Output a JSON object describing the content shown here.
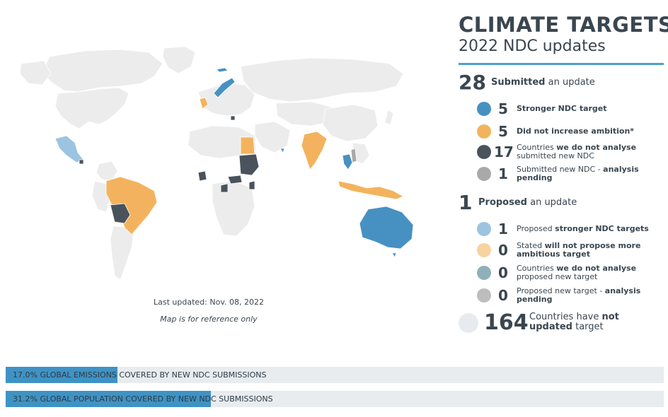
{
  "header": {
    "title": "CLIMATE TARGETS",
    "subtitle": "2022 NDC updates"
  },
  "submitted": {
    "count": "28",
    "label_bold": "Submitted",
    "label_rest": " an update",
    "items": [
      {
        "count": "5",
        "color": "#4791c2",
        "bold_pre": "Stronger NDC target",
        "text": "",
        "bold_post": ""
      },
      {
        "count": "5",
        "color": "#f3b35e",
        "bold_pre": "Did not increase ambition*",
        "text": "",
        "bold_post": ""
      },
      {
        "count": "17",
        "color": "#4a535c",
        "bold_pre": "",
        "text_pre": "Countries ",
        "bold_mid": "we do not analyse",
        "text_post": " submitted new NDC"
      },
      {
        "count": "1",
        "color": "#a9a9a9",
        "bold_pre": "",
        "text_pre": "Submitted new NDC - ",
        "bold_mid": "analysis pending",
        "text_post": ""
      }
    ]
  },
  "proposed": {
    "count": "1",
    "label_bold": "Proposed",
    "label_rest": " an update",
    "items": [
      {
        "count": "1",
        "color": "#9cc4e1",
        "text_pre": "Proposed ",
        "bold_mid": "stronger NDC targets",
        "text_post": ""
      },
      {
        "count": "0",
        "color": "#f6d39f",
        "text_pre": "Stated ",
        "bold_mid": "will not propose more ambitious target",
        "text_post": ""
      },
      {
        "count": "0",
        "color": "#8fb0b8",
        "text_pre": "Countries ",
        "bold_mid": "we do not analyse",
        "text_post": " proposed new target"
      },
      {
        "count": "0",
        "color": "#bdbdbd",
        "text_pre": "Proposed new target - ",
        "bold_mid": "analysis pending",
        "text_post": ""
      }
    ]
  },
  "not_updated": {
    "count": "164",
    "text_pre": "Countries have ",
    "bold_mid": "not updated",
    "text_post": " target"
  },
  "map": {
    "last_updated": "Last updated: Nov. 08, 2022",
    "reference_note": "Map is for reference only",
    "base_color": "#ededed"
  },
  "bars": [
    {
      "label": "17.0% GLOBAL EMISSIONS COVERED BY NEW NDC SUBMISSIONS",
      "value_percent": 17.0,
      "color": "#3f93c4"
    },
    {
      "label": "31.2% GLOBAL POPULATION COVERED BY NEW NDC SUBMISSIONS",
      "value_percent": 31.2,
      "color": "#3f93c4"
    }
  ]
}
